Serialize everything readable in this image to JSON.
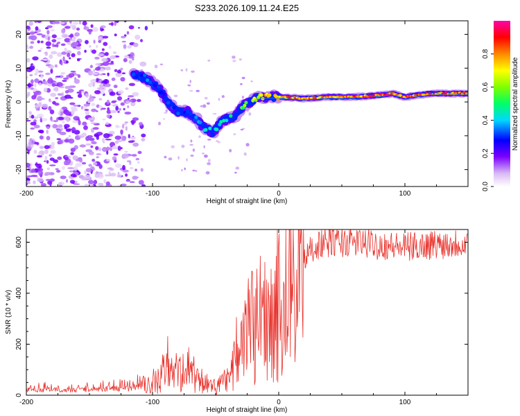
{
  "title": "S233.2026.109.11.24.E25",
  "chart_data": [
    {
      "type": "heatmap",
      "xlabel": "Height of straight line (km)",
      "ylabel": "Frequency (Hz)",
      "xlim": [
        -200,
        150
      ],
      "ylim": [
        -25,
        24
      ],
      "xticks": [
        -200,
        -100,
        0,
        100
      ],
      "yticks": [
        -20,
        -10,
        0,
        10,
        20
      ],
      "colorbar": {
        "label": "Normalized spectral amplitude",
        "range": [
          0,
          1
        ],
        "ticks": [
          0.0,
          0.2,
          0.4,
          0.6,
          0.8
        ]
      },
      "ridge": {
        "x": [
          -115,
          -105,
          -95,
          -88,
          -80,
          -72,
          -65,
          -58,
          -52,
          -46,
          -40,
          -34,
          -28,
          -22,
          -16,
          -10,
          0,
          20,
          40,
          60,
          80,
          90,
          100,
          120,
          150
        ],
        "y": [
          8,
          7,
          4,
          0,
          -3,
          -3,
          -5,
          -8,
          -9,
          -6,
          -5,
          -4,
          -1,
          0,
          1.5,
          1.5,
          1.5,
          1,
          1.5,
          1.5,
          2,
          2.5,
          1.5,
          2.5,
          2.5
        ],
        "amplitude": [
          0.3,
          0.35,
          0.3,
          0.3,
          0.35,
          0.35,
          0.35,
          0.4,
          0.45,
          0.45,
          0.5,
          0.55,
          0.6,
          0.65,
          0.7,
          0.8,
          0.8,
          0.85,
          0.8,
          0.85,
          0.9,
          0.9,
          0.85,
          0.9,
          0.9
        ]
      }
    },
    {
      "type": "line",
      "xlabel": "Height of straight line (km)",
      "ylabel": "SNR (10 * v/v)",
      "xlim": [
        -200,
        150
      ],
      "ylim": [
        0,
        650
      ],
      "xticks": [
        -200,
        -100,
        0,
        100
      ],
      "yticks": [
        0,
        200,
        400,
        600
      ],
      "series": [
        {
          "name": "SNR",
          "color": "#e8302a",
          "x": [
            -200,
            -180,
            -160,
            -140,
            -120,
            -110,
            -100,
            -95,
            -90,
            -85,
            -80,
            -75,
            -70,
            -65,
            -60,
            -55,
            -50,
            -45,
            -40,
            -35,
            -30,
            -27,
            -24,
            -20,
            -16,
            -12,
            -8,
            -4,
            0,
            4,
            8,
            12,
            16,
            20,
            25,
            30,
            40,
            60,
            80,
            100,
            120,
            150
          ],
          "y": [
            20,
            22,
            20,
            25,
            28,
            35,
            40,
            60,
            90,
            110,
            80,
            90,
            80,
            60,
            50,
            35,
            30,
            40,
            60,
            120,
            170,
            200,
            230,
            260,
            280,
            300,
            330,
            320,
            340,
            380,
            400,
            430,
            480,
            520,
            570,
            590,
            600,
            600,
            590,
            580,
            590,
            600
          ]
        }
      ]
    }
  ]
}
